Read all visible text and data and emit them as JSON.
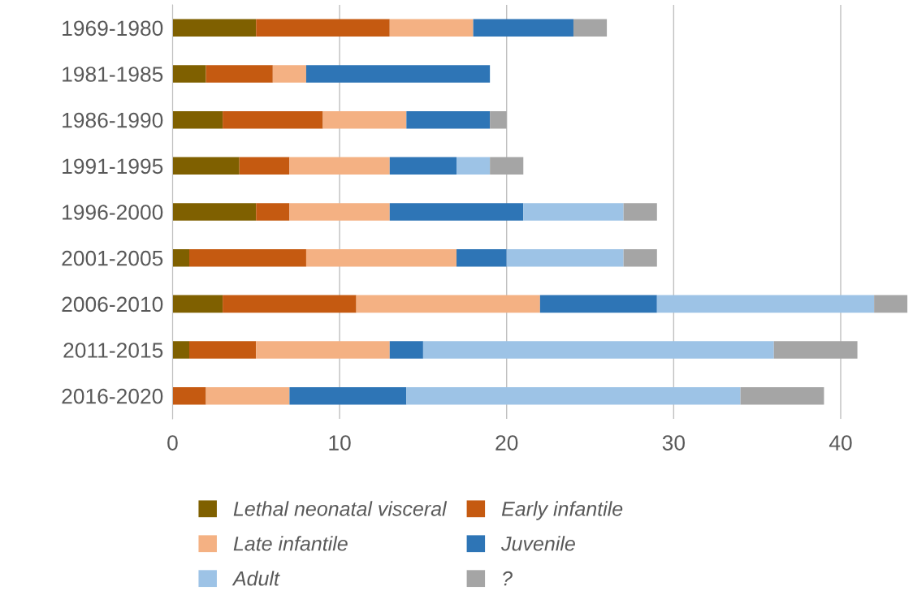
{
  "chart_data": {
    "type": "bar",
    "orientation": "horizontal",
    "stacked": true,
    "categories": [
      "1969-1980",
      "1981-1985",
      "1986-1990",
      "1991-1995",
      "1996-2000",
      "2001-2005",
      "2006-2010",
      "2011-2015",
      "2016-2020"
    ],
    "series": [
      {
        "name": "Lethal neonatal visceral",
        "color": "#7f6000",
        "values": [
          5,
          2,
          3,
          4,
          5,
          1,
          3,
          1,
          0
        ]
      },
      {
        "name": "Early infantile",
        "color": "#c55a11",
        "values": [
          8,
          4,
          6,
          3,
          2,
          7,
          8,
          4,
          2
        ]
      },
      {
        "name": "Late infantile",
        "color": "#f4b183",
        "values": [
          5,
          2,
          5,
          6,
          6,
          9,
          11,
          8,
          5
        ]
      },
      {
        "name": "Juvenile",
        "color": "#2e75b6",
        "values": [
          6,
          11,
          5,
          4,
          8,
          3,
          7,
          2,
          7
        ]
      },
      {
        "name": "Adult",
        "color": "#9dc3e6",
        "values": [
          0,
          0,
          0,
          2,
          6,
          7,
          13,
          21,
          20
        ]
      },
      {
        "name": "?",
        "color": "#a5a5a5",
        "values": [
          2,
          0,
          1,
          2,
          2,
          2,
          2,
          5,
          5
        ]
      }
    ],
    "xlim": [
      0,
      44
    ],
    "xticks": [
      0,
      10,
      20,
      30,
      40
    ],
    "grid": "x",
    "legend": "bottom"
  }
}
